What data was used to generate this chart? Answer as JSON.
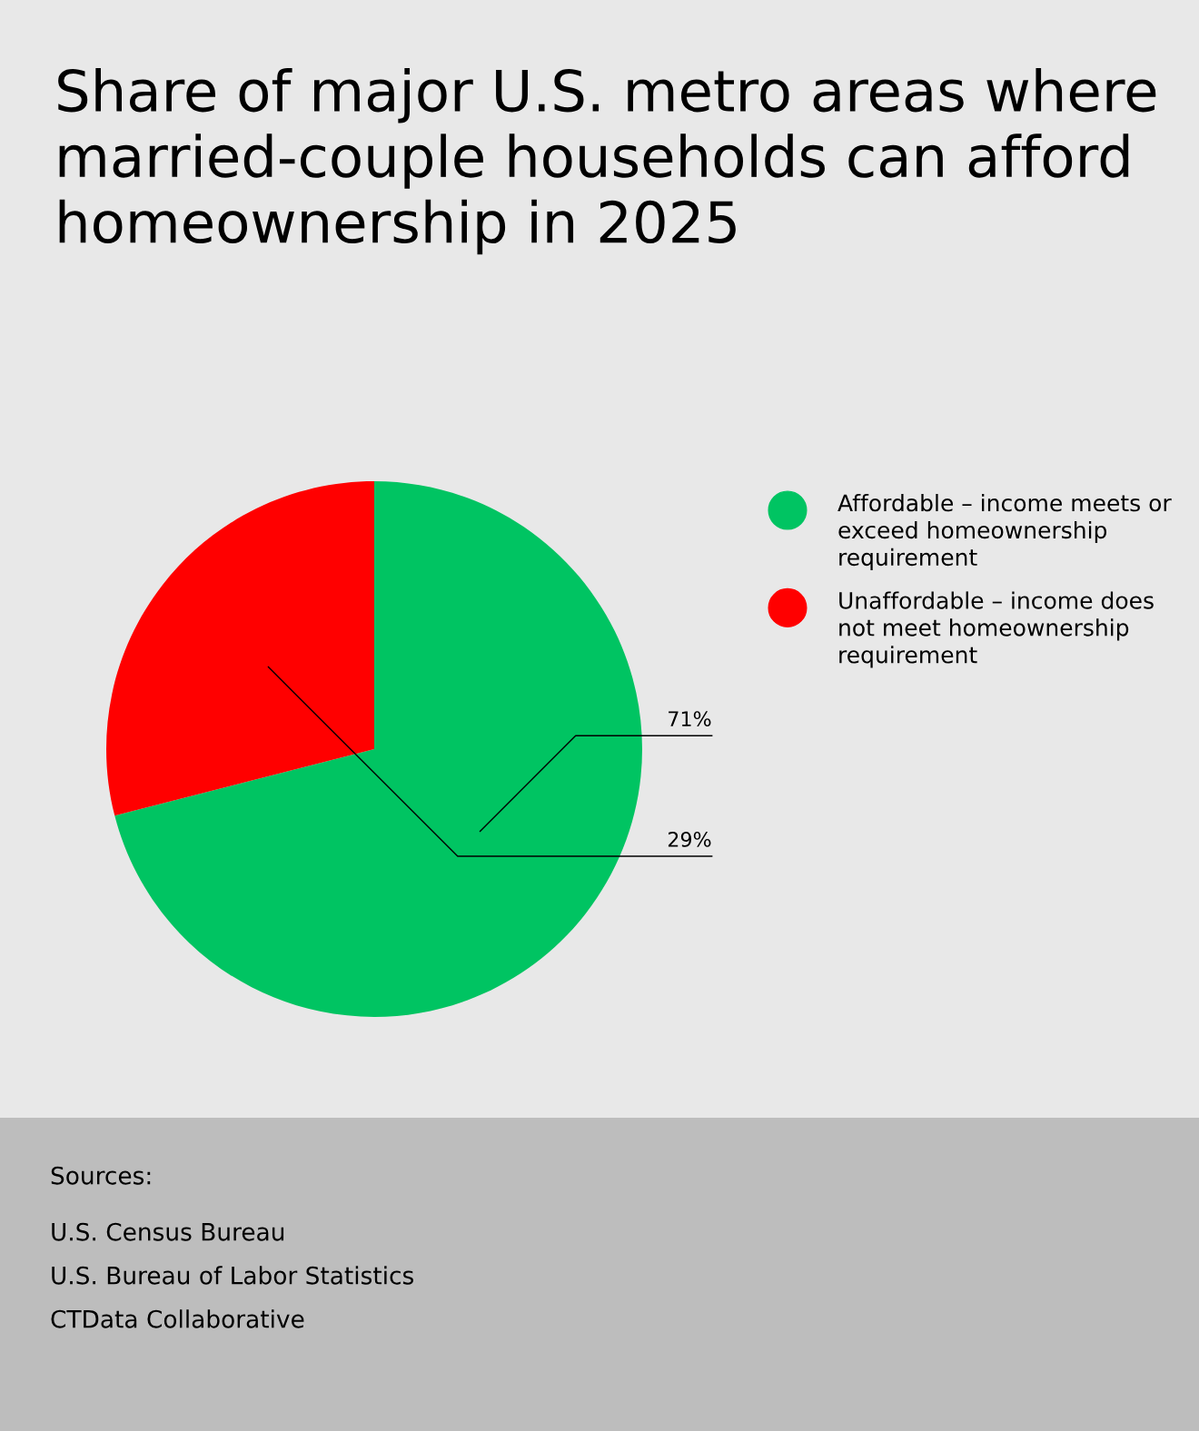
{
  "chart_data": {
    "type": "pie",
    "title": "Share of major U.S. metro areas where married-couple households can afford homeownership in 2025",
    "categories": [
      "Affordable – income meets or exceed homeownership requirement",
      "Unaffordable – income does not meet homeownership requirement"
    ],
    "values": [
      71,
      29
    ],
    "value_labels": [
      "71%",
      "29%"
    ],
    "colors": [
      "#00c462",
      "#ff0000"
    ],
    "legend": "right",
    "annotations": [
      "Sources:",
      "U.S. Census Bureau",
      "U.S. Bureau of Labor Statistics",
      "CTData Collaborative"
    ]
  }
}
